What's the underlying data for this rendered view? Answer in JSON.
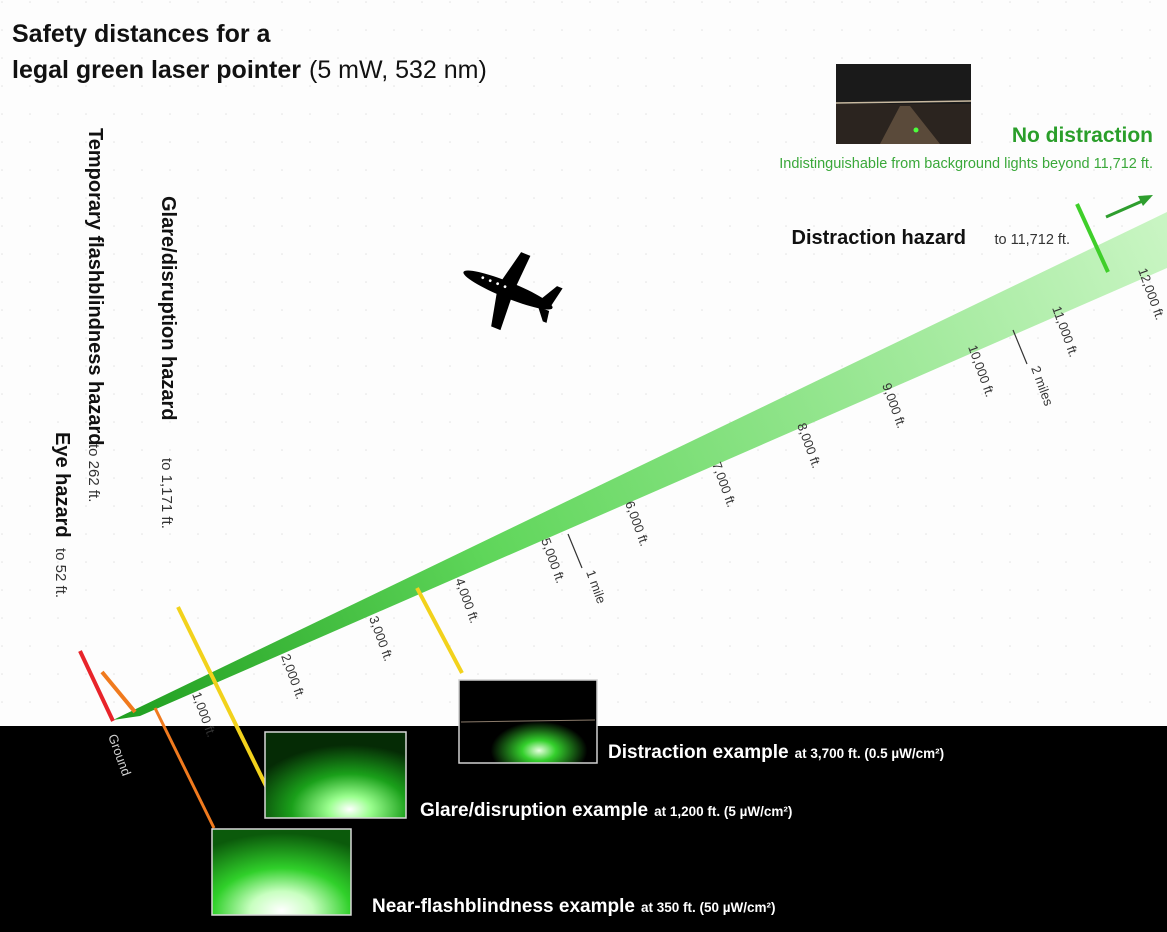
{
  "title": {
    "line1": "Safety distances for a",
    "line2_bold": "legal green laser pointer",
    "line2_rest": "(5 mW, 532 nm)"
  },
  "no_distraction": {
    "label": "No distraction",
    "note": "Indistinguishable from background lights beyond 11,712 ft."
  },
  "distraction_hazard": {
    "label": "Distraction hazard",
    "range": "to 11,712 ft."
  },
  "glare_hazard": {
    "label": "Glare/disruption hazard",
    "range": "to 1,171 ft."
  },
  "flash_hazard": {
    "label": "Temporary flashblindness hazard",
    "range": "to 262 ft."
  },
  "eye_hazard": {
    "label": "Eye hazard",
    "range": "to 52 ft."
  },
  "ground_label": "Ground",
  "distance_ticks": [
    "1,000 ft.",
    "2,000 ft.",
    "3,000 ft.",
    "4,000 ft.",
    "5,000 ft.",
    "6,000 ft.",
    "7,000 ft.",
    "8,000 ft.",
    "9,000 ft.",
    "10,000 ft.",
    "11,000 ft.",
    "12,000 ft."
  ],
  "mile_marks": [
    "1 mile",
    "2 miles"
  ],
  "examples": {
    "distraction": {
      "label": "Distraction example",
      "detail": "at 3,700 ft. (0.5 µW/cm²)"
    },
    "glare": {
      "label": "Glare/disruption example",
      "detail": "at 1,200 ft. (5 µW/cm²)"
    },
    "near_flash": {
      "label": "Near-flashblindness example",
      "detail": "at 350 ft. (50 µW/cm²)"
    }
  },
  "colors": {
    "eye": "#e8242a",
    "flash": "#f07a1e",
    "glare": "#f2d21c",
    "distraction": "#3fcf2a",
    "beam": "#8fe58a",
    "no_distraction_text": "#2a9e2a"
  }
}
